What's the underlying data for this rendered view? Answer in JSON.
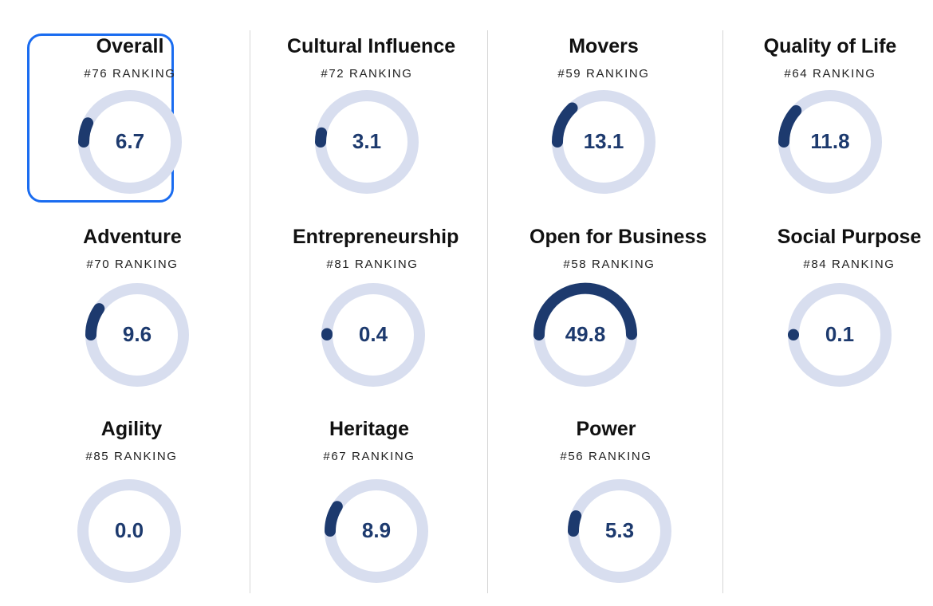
{
  "colors": {
    "track": "#d8deef",
    "fill": "#1d3a6e",
    "selected_border": "#1a6cf0"
  },
  "scale_max": 100,
  "cards": [
    {
      "title": "Overall",
      "rank": "#76 RANKING",
      "value": "6.7",
      "score": 6.7,
      "selected": true
    },
    {
      "title": "Cultural Influence",
      "rank": "#72 RANKING",
      "value": "3.1",
      "score": 3.1
    },
    {
      "title": "Movers",
      "rank": "#59 RANKING",
      "value": "13.1",
      "score": 13.1
    },
    {
      "title": "Quality of Life",
      "rank": "#64 RANKING",
      "value": "11.8",
      "score": 11.8
    },
    {
      "title": "Adventure",
      "rank": "#70 RANKING",
      "value": "9.6",
      "score": 9.6
    },
    {
      "title": "Entrepreneurship",
      "rank": "#81 RANKING",
      "value": "0.4",
      "score": 0.4
    },
    {
      "title": "Open for Business",
      "rank": "#58 RANKING",
      "value": "49.8",
      "score": 49.8
    },
    {
      "title": "Social Purpose",
      "rank": "#84 RANKING",
      "value": "0.1",
      "score": 0.1
    },
    {
      "title": "Agility",
      "rank": "#85 RANKING",
      "value": "0.0",
      "score": 0.0
    },
    {
      "title": "Heritage",
      "rank": "#67 RANKING",
      "value": "8.9",
      "score": 8.9
    },
    {
      "title": "Power",
      "rank": "#56 RANKING",
      "value": "5.3",
      "score": 5.3
    }
  ]
}
